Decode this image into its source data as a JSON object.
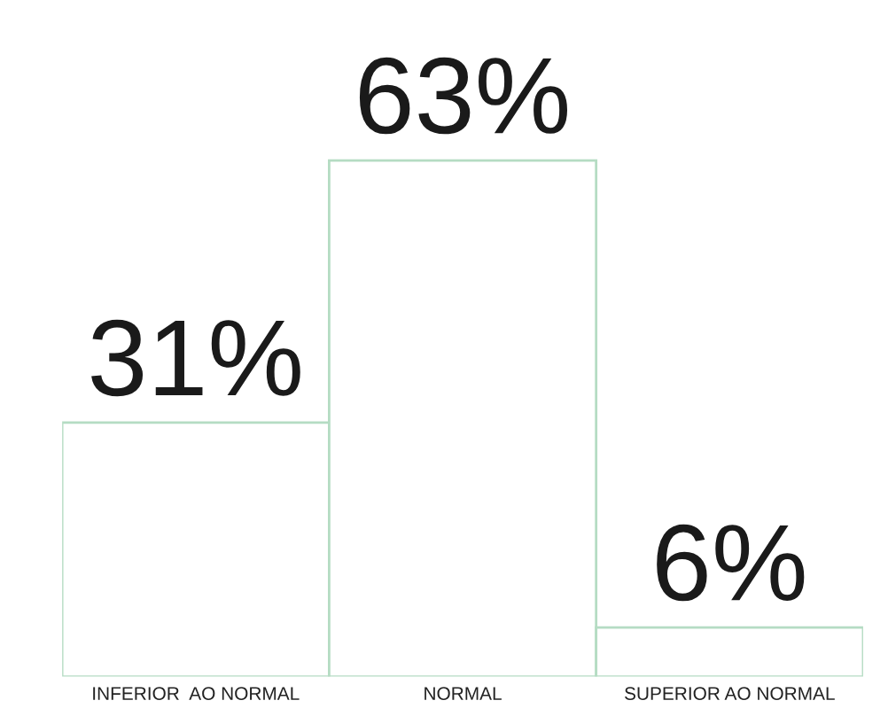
{
  "chart_data": {
    "type": "bar",
    "categories": [
      "INFERIOR  AO NORMAL",
      "NORMAL",
      "SUPERIOR AO NORMAL"
    ],
    "values": [
      31,
      63,
      6
    ],
    "value_labels": [
      "31%",
      "63%",
      "6%"
    ],
    "color": "#b5dcc3",
    "grid": false,
    "legend": false
  }
}
